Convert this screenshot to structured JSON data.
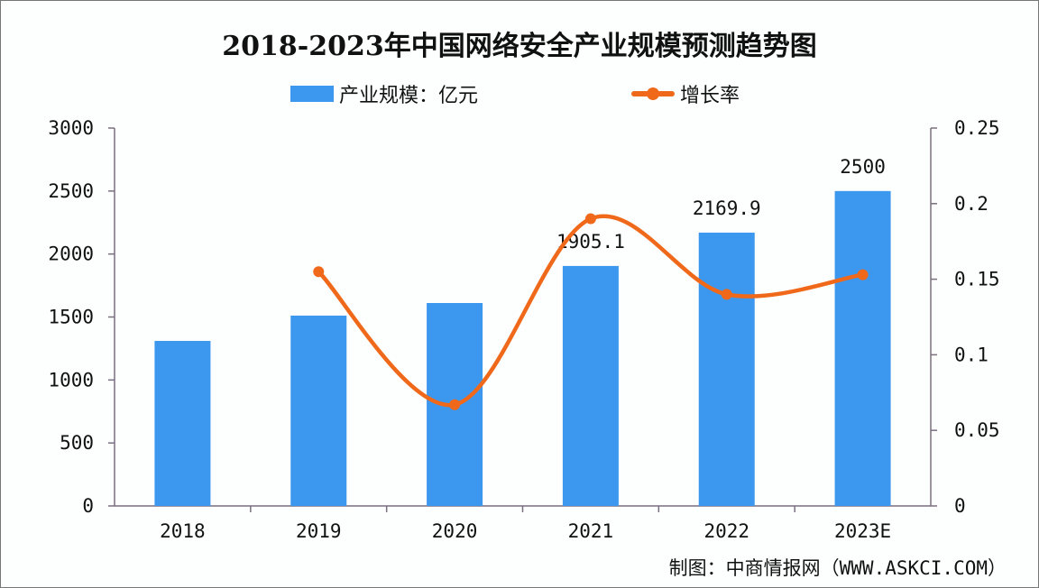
{
  "title": "2018-2023年中国网络安全产业规模预测趋势图",
  "legend": {
    "bar_label": "产业规模：亿元",
    "line_label": "增长率"
  },
  "source": "制图：中商情报网（WWW.ASKCI.COM）",
  "colors": {
    "bar": "#3c97ee",
    "line": "#f0691b",
    "axis": "#7a6f7f"
  },
  "chart_data": {
    "type": "bar",
    "title": "2018-2023年中国网络安全产业规模预测趋势图",
    "categories": [
      "2018",
      "2019",
      "2020",
      "2021",
      "2022",
      "2023E"
    ],
    "series": [
      {
        "name": "产业规模：亿元",
        "type": "bar",
        "axis": "left",
        "values": [
          1310,
          1511,
          1611,
          1905.1,
          2169.9,
          2500
        ]
      },
      {
        "name": "增长率",
        "type": "line",
        "axis": "right",
        "values": [
          null,
          0.155,
          0.067,
          0.19,
          0.14,
          0.153
        ]
      }
    ],
    "data_labels": {
      "2021": "1905.1",
      "2022": "2169.9",
      "2023E": "2500"
    },
    "left_axis": {
      "ylim": [
        0,
        3000
      ],
      "ticks": [
        "0",
        "500",
        "1000",
        "1500",
        "2000",
        "2500",
        "3000"
      ]
    },
    "right_axis": {
      "ylim": [
        0,
        0.25
      ],
      "ticks": [
        "0",
        "0.05",
        "0.1",
        "0.15",
        "0.2",
        "0.25"
      ]
    },
    "xlabel": "",
    "ylabel": "",
    "grid": false,
    "legend_position": "top"
  }
}
